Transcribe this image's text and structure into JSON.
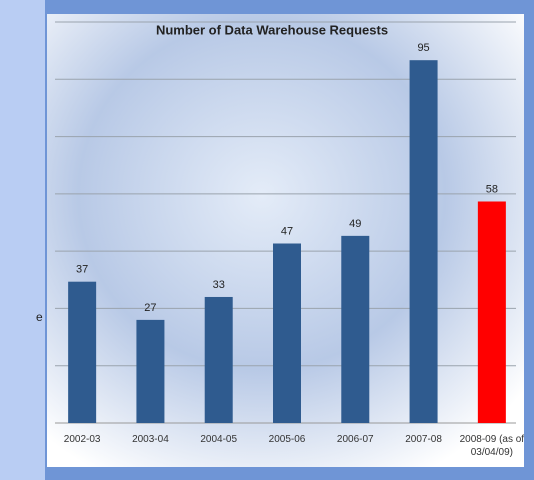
{
  "sidebar_text": "e",
  "chart_data": {
    "type": "bar",
    "title": "Number of Data Warehouse Requests",
    "categories": [
      "2002-03",
      "2003-04",
      "2004-05",
      "2005-06",
      "2006-07",
      "2007-08",
      "2008-09 (as of 03/04/09)"
    ],
    "values": [
      37,
      27,
      33,
      47,
      49,
      95,
      58
    ],
    "colors": [
      "#2f5b8f",
      "#2f5b8f",
      "#2f5b8f",
      "#2f5b8f",
      "#2f5b8f",
      "#2f5b8f",
      "#ff0000"
    ],
    "ylim": [
      0,
      105
    ],
    "yticks": [
      0,
      15,
      30,
      45,
      60,
      75,
      90,
      105
    ],
    "grid": true
  }
}
